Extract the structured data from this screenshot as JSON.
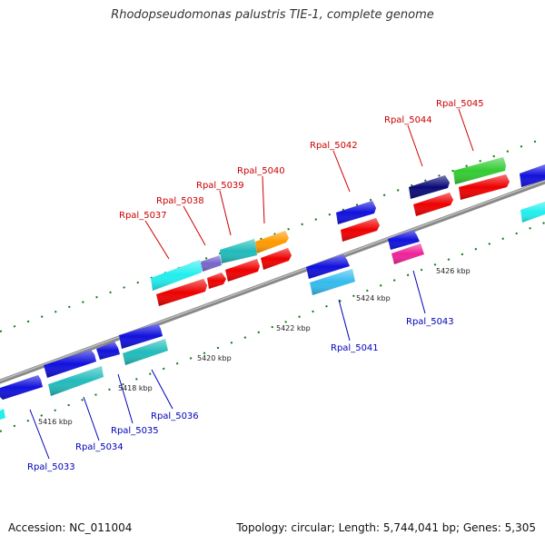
{
  "title": "Rhodopseudomonas palustris TIE-1, complete genome",
  "footer": {
    "accession": "Accession: NC_011004",
    "topology": "Topology: circular; Length: 5,744,041 bp; Genes: 5,305"
  },
  "kbp_labels": [
    "5416 kbp",
    "5418 kbp",
    "5420 kbp",
    "5422 kbp",
    "5424 kbp",
    "5426 kbp"
  ],
  "genes_above": [
    "Rpal_5037",
    "Rpal_5038",
    "Rpal_5039",
    "Rpal_5040",
    "Rpal_5042",
    "Rpal_5044",
    "Rpal_5045"
  ],
  "genes_below": [
    "Rpal_5033",
    "Rpal_5034",
    "Rpal_5035",
    "Rpal_5036",
    "Rpal_5041",
    "Rpal_5043"
  ],
  "colors": {
    "backbone": "#8c8c8c",
    "red": "#ee0000",
    "blue": "#1111dd",
    "navy": "#0a0a77",
    "cyan": "#22eeee",
    "teal": "#22bbbb",
    "sky": "#33bbee",
    "purple": "#7766cc",
    "orange": "#ff9900",
    "green": "#33cc33",
    "magenta": "#ee2299",
    "above_label": "#cc0000",
    "below_label": "#0000bb",
    "tick": "#117711"
  }
}
